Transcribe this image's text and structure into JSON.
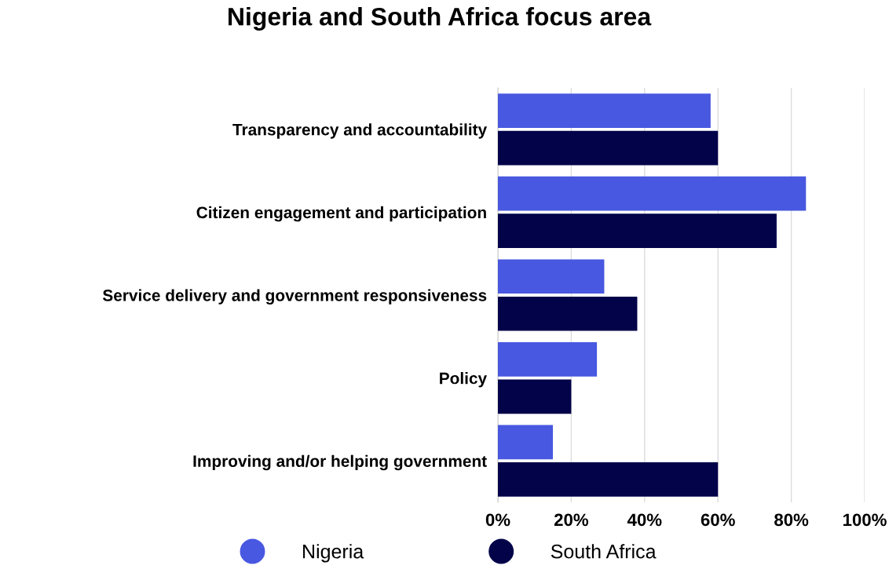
{
  "chart_data": {
    "type": "bar",
    "orientation": "horizontal",
    "title": "Nigeria and South Africa focus area",
    "categories": [
      "Transparency and accountability",
      "Citizen engagement and participation",
      "Service delivery and government responsiveness",
      "Policy",
      "Improving and/or helping government"
    ],
    "series": [
      {
        "name": "Nigeria",
        "color": "#4858e0",
        "values": [
          58,
          84,
          29,
          27,
          15
        ]
      },
      {
        "name": "South Africa",
        "color": "#020349",
        "values": [
          60,
          76,
          38,
          20,
          60
        ]
      }
    ],
    "xlim": [
      0,
      100
    ],
    "xticks": [
      {
        "value": 0,
        "label": "0%"
      },
      {
        "value": 20,
        "label": "20%"
      },
      {
        "value": 40,
        "label": "40%"
      },
      {
        "value": 60,
        "label": "60%"
      },
      {
        "value": 80,
        "label": "80%"
      },
      {
        "value": 100,
        "label": "100%"
      }
    ],
    "grid": "x",
    "legend": "bottom"
  }
}
